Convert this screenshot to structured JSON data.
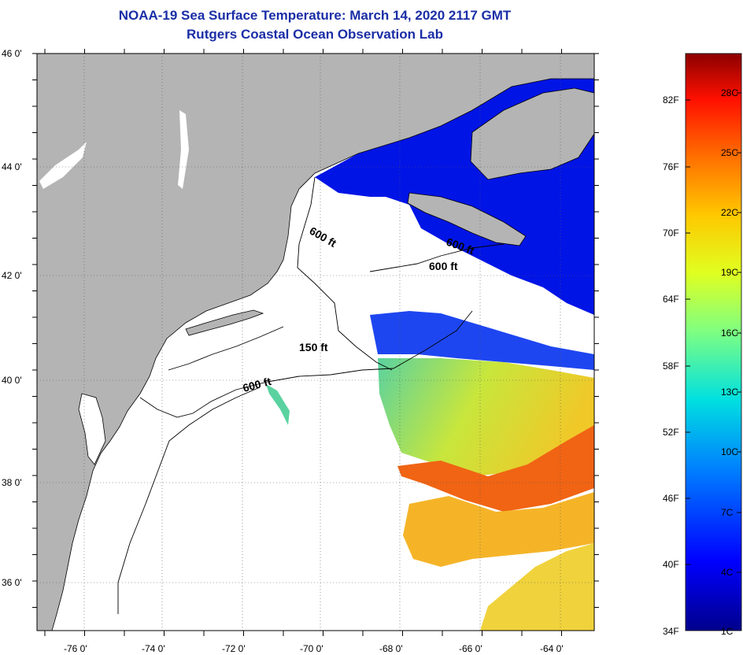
{
  "title": {
    "line1": "NOAA-19 Sea Surface Temperature:  March 14, 2020 2117 GMT",
    "line2": "Rutgers Coastal Ocean Observation Lab"
  },
  "map": {
    "lat_labels": [
      "46 0'",
      "44 0'",
      "42 0'",
      "40 0'",
      "38 0'",
      "36 0'"
    ],
    "lon_labels": [
      "-76 0'",
      "-74 0'",
      "-72 0'",
      "-70 0'",
      "-68 0'",
      "-66 0'",
      "-64 0'"
    ],
    "isobaths": [
      "600 ft",
      "600 ft",
      "600 ft",
      "150 ft",
      "600 ft"
    ],
    "colors": {
      "land": "#b4b4b4",
      "water": "#ffffff",
      "coast": "#000000"
    }
  },
  "colorbar": {
    "f_labels": [
      "82F",
      "76F",
      "70F",
      "64F",
      "58F",
      "52F",
      "46F",
      "40F",
      "34F"
    ],
    "c_labels": [
      "28C",
      "25C",
      "22C",
      "19C",
      "16C",
      "13C",
      "10C",
      "7C",
      "4C",
      "1C"
    ]
  }
}
